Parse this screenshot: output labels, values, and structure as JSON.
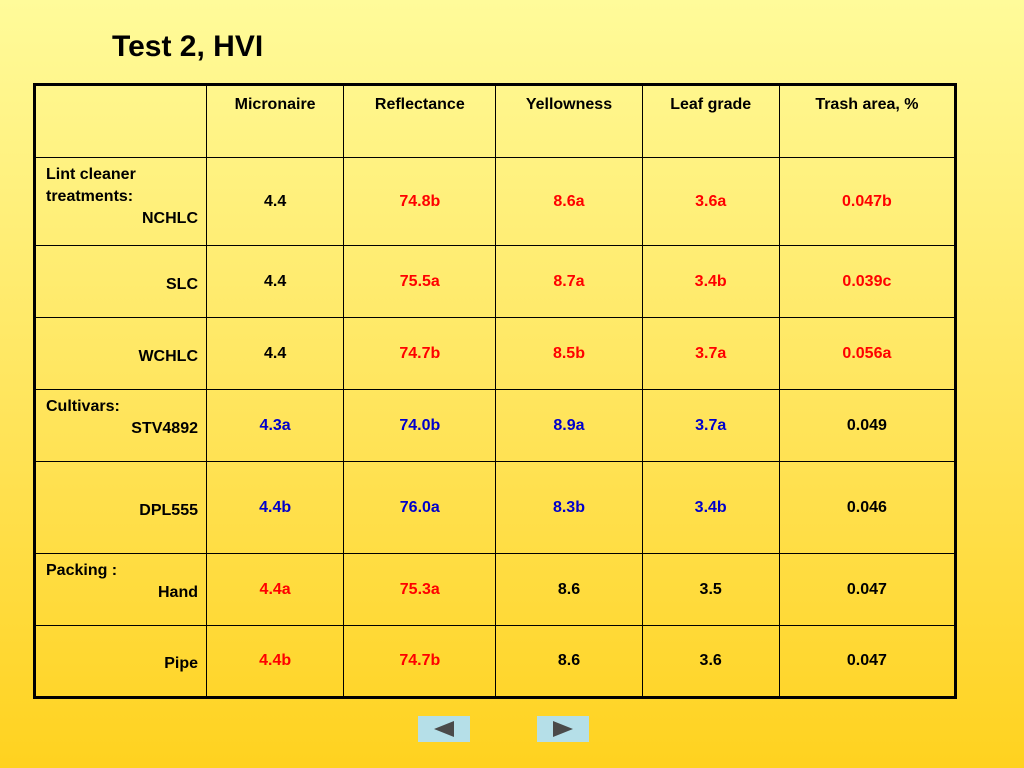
{
  "title": "Test 2, HVI",
  "columns": [
    "",
    "Micronaire",
    "Reflectance",
    "Yellowness",
    "Leaf grade",
    "Trash area, %"
  ],
  "rows": [
    {
      "group": "Lint cleaner treatments:",
      "label": "NCHLC",
      "cells": [
        {
          "v": "4.4",
          "c": "black"
        },
        {
          "v": "74.8b",
          "c": "red"
        },
        {
          "v": "8.6a",
          "c": "red"
        },
        {
          "v": "3.6a",
          "c": "red"
        },
        {
          "v": "0.047b",
          "c": "red"
        }
      ]
    },
    {
      "group": "",
      "label": "SLC",
      "cells": [
        {
          "v": "4.4",
          "c": "black"
        },
        {
          "v": "75.5a",
          "c": "red"
        },
        {
          "v": "8.7a",
          "c": "red"
        },
        {
          "v": "3.4b",
          "c": "red"
        },
        {
          "v": "0.039c",
          "c": "red"
        }
      ]
    },
    {
      "group": "",
      "label": "WCHLC",
      "cells": [
        {
          "v": "4.4",
          "c": "black"
        },
        {
          "v": "74.7b",
          "c": "red"
        },
        {
          "v": "8.5b",
          "c": "red"
        },
        {
          "v": "3.7a",
          "c": "red"
        },
        {
          "v": "0.056a",
          "c": "red"
        }
      ]
    },
    {
      "group": "Cultivars:",
      "label": "STV4892",
      "cells": [
        {
          "v": "4.3a",
          "c": "blue"
        },
        {
          "v": "74.0b",
          "c": "blue"
        },
        {
          "v": "8.9a",
          "c": "blue"
        },
        {
          "v": "3.7a",
          "c": "blue"
        },
        {
          "v": "0.049",
          "c": "black"
        }
      ]
    },
    {
      "group": "",
      "label": "DPL555",
      "cells": [
        {
          "v": "4.4b",
          "c": "blue"
        },
        {
          "v": "76.0a",
          "c": "blue"
        },
        {
          "v": "8.3b",
          "c": "blue"
        },
        {
          "v": "3.4b",
          "c": "blue"
        },
        {
          "v": "0.046",
          "c": "black"
        }
      ]
    },
    {
      "group": "Packing :",
      "label": "Hand",
      "cells": [
        {
          "v": "4.4a",
          "c": "red"
        },
        {
          "v": "75.3a",
          "c": "red"
        },
        {
          "v": "8.6",
          "c": "black"
        },
        {
          "v": "3.5",
          "c": "black"
        },
        {
          "v": "0.047",
          "c": "black"
        }
      ]
    },
    {
      "group": "",
      "label": "Pipe",
      "cells": [
        {
          "v": "4.4b",
          "c": "red"
        },
        {
          "v": "74.7b",
          "c": "red"
        },
        {
          "v": "8.6",
          "c": "black"
        },
        {
          "v": "3.6",
          "c": "black"
        },
        {
          "v": "0.047",
          "c": "black"
        }
      ]
    }
  ],
  "colors": {
    "red": "#ff0000",
    "blue": "#0000cc",
    "black": "#000000",
    "nav_button": "#b5dfe8",
    "nav_arrow": "#4a4a4a"
  },
  "nav": {
    "prev_icon": "left-triangle-icon",
    "next_icon": "right-triangle-icon"
  }
}
